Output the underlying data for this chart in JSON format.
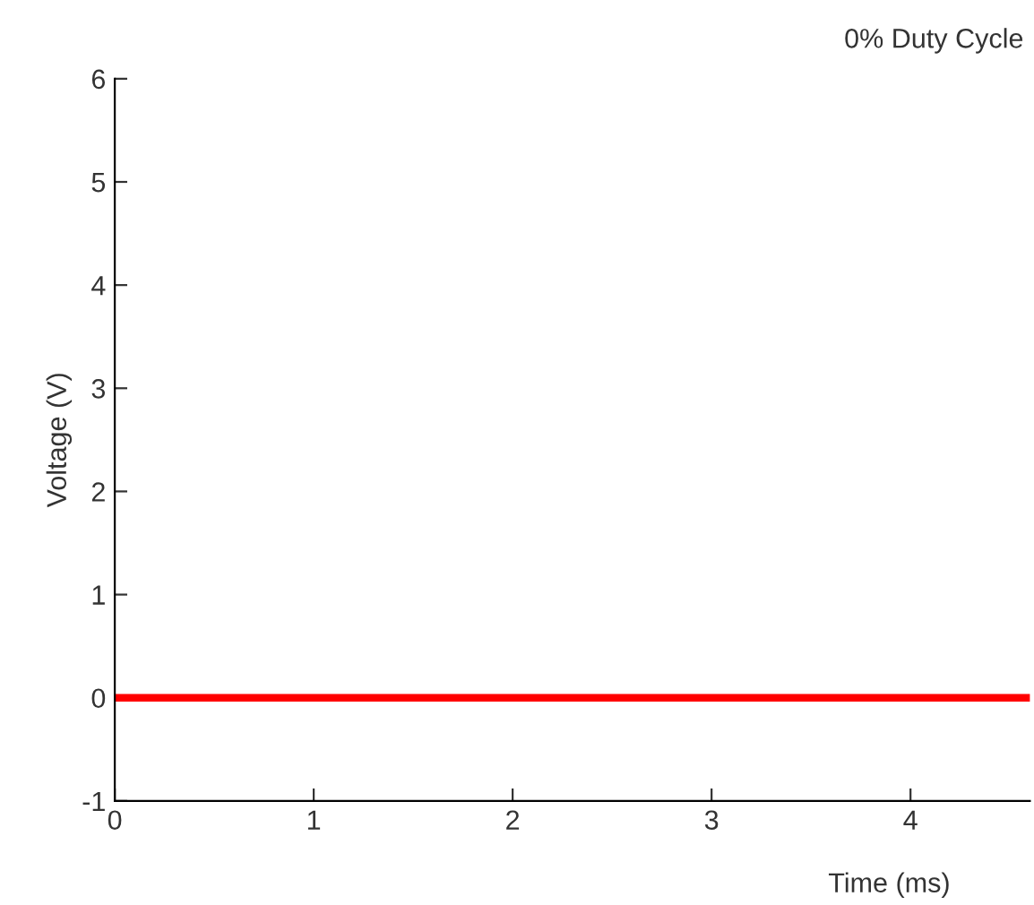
{
  "chart_data": {
    "type": "line",
    "title": "0% Duty Cycle",
    "xlabel": "Time (ms)",
    "ylabel": "Voltage (V)",
    "xlim": [
      0,
      4.6
    ],
    "ylim": [
      -1,
      6
    ],
    "xticks": [
      0,
      1,
      2,
      3,
      4
    ],
    "yticks": [
      -1,
      0,
      1,
      2,
      3,
      4,
      5,
      6
    ],
    "grid": false,
    "legend": false,
    "marker": "none",
    "line_style": "solid",
    "series": [
      {
        "color": "#ff0000",
        "x": [
          0,
          4.6
        ],
        "values": [
          0,
          0
        ]
      }
    ]
  }
}
